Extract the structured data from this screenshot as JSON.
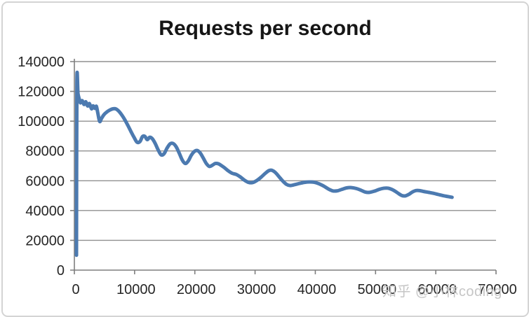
{
  "chart_data": {
    "type": "line",
    "title": "Requests per second",
    "xlabel": "",
    "ylabel": "",
    "xlim": [
      0,
      70000
    ],
    "ylim": [
      0,
      140000
    ],
    "x_ticks": [
      0,
      10000,
      20000,
      30000,
      40000,
      50000,
      60000,
      70000
    ],
    "y_ticks": [
      0,
      20000,
      40000,
      60000,
      80000,
      100000,
      120000,
      140000
    ],
    "grid": "horizontal",
    "legend_position": "none",
    "series": [
      {
        "name": "Requests per second",
        "color": "#4c7ab0",
        "points": [
          [
            350,
            10000
          ],
          [
            420,
            126000
          ],
          [
            600,
            118500
          ],
          [
            800,
            115000
          ],
          [
            1000,
            112300
          ],
          [
            1300,
            113800
          ],
          [
            1600,
            111200
          ],
          [
            1900,
            113000
          ],
          [
            2200,
            110200
          ],
          [
            2500,
            111800
          ],
          [
            2850,
            108300
          ],
          [
            3100,
            110300
          ],
          [
            3400,
            108600
          ],
          [
            3650,
            110000
          ],
          [
            3900,
            105300
          ],
          [
            4200,
            99800
          ],
          [
            4500,
            101800
          ],
          [
            4900,
            104300
          ],
          [
            5400,
            106200
          ],
          [
            5900,
            107500
          ],
          [
            6400,
            108300
          ],
          [
            6900,
            108200
          ],
          [
            7400,
            106600
          ],
          [
            7900,
            104000
          ],
          [
            8400,
            100800
          ],
          [
            8900,
            97000
          ],
          [
            9400,
            93000
          ],
          [
            9900,
            89200
          ],
          [
            10400,
            85900
          ],
          [
            10900,
            86400
          ],
          [
            11300,
            89600
          ],
          [
            11700,
            89800
          ],
          [
            12100,
            87600
          ],
          [
            12500,
            89200
          ],
          [
            12900,
            88400
          ],
          [
            13400,
            85200
          ],
          [
            13900,
            80800
          ],
          [
            14400,
            77400
          ],
          [
            14900,
            78200
          ],
          [
            15400,
            82000
          ],
          [
            15900,
            84800
          ],
          [
            16400,
            85000
          ],
          [
            16900,
            82800
          ],
          [
            17400,
            78600
          ],
          [
            17900,
            74000
          ],
          [
            18400,
            71600
          ],
          [
            18900,
            73200
          ],
          [
            19400,
            77000
          ],
          [
            19900,
            79600
          ],
          [
            20400,
            80300
          ],
          [
            20900,
            78600
          ],
          [
            21400,
            75200
          ],
          [
            21900,
            71600
          ],
          [
            22400,
            69600
          ],
          [
            22900,
            70400
          ],
          [
            23400,
            71600
          ],
          [
            23900,
            71400
          ],
          [
            24400,
            70200
          ],
          [
            24900,
            68800
          ],
          [
            25500,
            66800
          ],
          [
            26200,
            65000
          ],
          [
            26900,
            64200
          ],
          [
            27600,
            62400
          ],
          [
            28300,
            60200
          ],
          [
            29000,
            58800
          ],
          [
            29600,
            58800
          ],
          [
            30300,
            60200
          ],
          [
            31000,
            62400
          ],
          [
            31700,
            65000
          ],
          [
            32300,
            66800
          ],
          [
            32800,
            67000
          ],
          [
            33400,
            65400
          ],
          [
            34000,
            62600
          ],
          [
            34600,
            59800
          ],
          [
            35200,
            57600
          ],
          [
            35800,
            56800
          ],
          [
            36600,
            57400
          ],
          [
            37400,
            58200
          ],
          [
            38200,
            58900
          ],
          [
            39000,
            59200
          ],
          [
            39800,
            59000
          ],
          [
            40600,
            58000
          ],
          [
            41400,
            56400
          ],
          [
            42200,
            54400
          ],
          [
            42900,
            53200
          ],
          [
            43600,
            53200
          ],
          [
            44400,
            54200
          ],
          [
            45200,
            55200
          ],
          [
            46000,
            55400
          ],
          [
            46800,
            54800
          ],
          [
            47600,
            53600
          ],
          [
            48300,
            52400
          ],
          [
            49000,
            52200
          ],
          [
            49800,
            53000
          ],
          [
            50600,
            54200
          ],
          [
            51400,
            55000
          ],
          [
            52100,
            55000
          ],
          [
            52900,
            53800
          ],
          [
            53600,
            52000
          ],
          [
            54300,
            50200
          ],
          [
            54900,
            49800
          ],
          [
            55500,
            50800
          ],
          [
            56100,
            52400
          ],
          [
            56700,
            53400
          ],
          [
            57300,
            53400
          ],
          [
            58000,
            52800
          ],
          [
            58800,
            52200
          ],
          [
            59600,
            51600
          ],
          [
            60400,
            50800
          ],
          [
            61200,
            50000
          ],
          [
            62000,
            49400
          ],
          [
            62700,
            48900
          ]
        ]
      }
    ]
  },
  "watermark": {
    "text": "知乎 @小林coding",
    "color": "#c6c6c6"
  },
  "colors": {
    "background": "#ffffff",
    "border": "#d4d4d4",
    "grid": "#909090",
    "axis": "#7f7f7f",
    "label": "#262626",
    "title": "#161616",
    "line": "#4c7ab0"
  }
}
